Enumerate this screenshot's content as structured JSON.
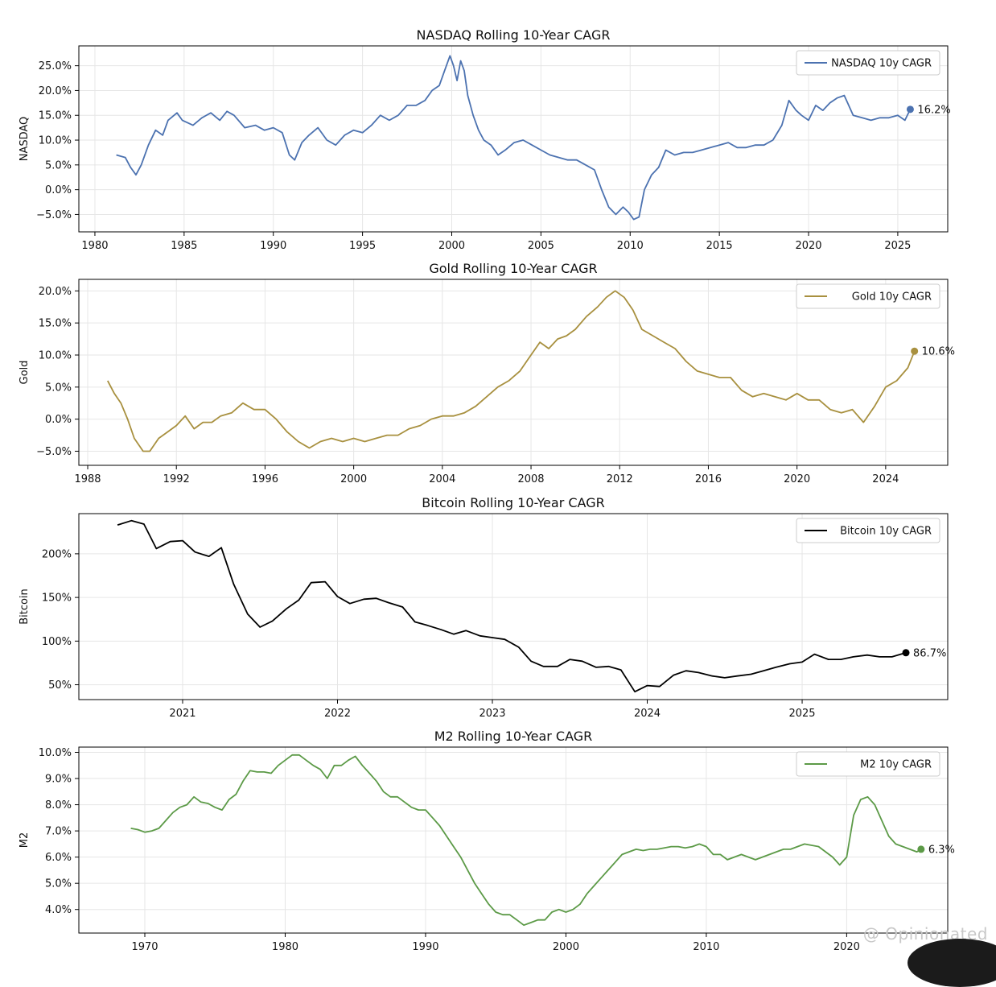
{
  "watermark": "@ Opinionated",
  "chart_data": [
    {
      "type": "line",
      "title": "NASDAQ Rolling 10-Year CAGR",
      "ylabel": "NASDAQ",
      "xlabel": "",
      "legend": "NASDAQ 10y CAGR",
      "legend_position": "top-right",
      "color": "#4c72b0",
      "grid": true,
      "xlim": [
        1979.1,
        2027.8
      ],
      "ylim": [
        -8.5,
        29.0
      ],
      "x_ticks": [
        1980,
        1985,
        1990,
        1995,
        2000,
        2005,
        2010,
        2015,
        2020,
        2025
      ],
      "x_tick_labels": [
        "1980",
        "1985",
        "1990",
        "1995",
        "2000",
        "2005",
        "2010",
        "2015",
        "2020",
        "2025"
      ],
      "y_ticks": [
        -5,
        0,
        5,
        10,
        15,
        20,
        25
      ],
      "y_tick_labels": [
        "−5.0%",
        "0.0%",
        "5.0%",
        "10.0%",
        "15.0%",
        "20.0%",
        "25.0%"
      ],
      "last_label": "16.2%",
      "x": [
        1981.2,
        1981.7,
        1982.0,
        1982.3,
        1982.6,
        1983.0,
        1983.4,
        1983.8,
        1984.1,
        1984.6,
        1984.9,
        1985.5,
        1986.0,
        1986.5,
        1987.0,
        1987.4,
        1987.8,
        1988.4,
        1989.0,
        1989.5,
        1990.0,
        1990.5,
        1990.9,
        1991.2,
        1991.6,
        1992.0,
        1992.5,
        1993.0,
        1993.5,
        1994.0,
        1994.5,
        1995.0,
        1995.5,
        1996.0,
        1996.5,
        1997.0,
        1997.5,
        1998.0,
        1998.5,
        1998.9,
        1999.3,
        1999.6,
        1999.9,
        2000.1,
        2000.3,
        2000.5,
        2000.7,
        2000.9,
        2001.2,
        2001.5,
        2001.8,
        2002.2,
        2002.6,
        2003.0,
        2003.5,
        2004.0,
        2004.5,
        2005.0,
        2005.5,
        2006.0,
        2006.5,
        2007.0,
        2007.5,
        2008.0,
        2008.4,
        2008.8,
        2009.2,
        2009.6,
        2009.9,
        2010.2,
        2010.5,
        2010.8,
        2011.2,
        2011.6,
        2012.0,
        2012.5,
        2013.0,
        2013.5,
        2014.0,
        2014.5,
        2015.0,
        2015.5,
        2016.0,
        2016.5,
        2017.0,
        2017.5,
        2018.0,
        2018.5,
        2018.9,
        2019.3,
        2019.6,
        2020.0,
        2020.4,
        2020.8,
        2021.2,
        2021.6,
        2022.0,
        2022.5,
        2023.0,
        2023.5,
        2024.0,
        2024.5,
        2025.0,
        2025.4,
        2025.7
      ],
      "y": [
        7.0,
        6.5,
        4.5,
        3.0,
        5.0,
        9.0,
        12.0,
        11.0,
        14.0,
        15.5,
        14.0,
        13.0,
        14.5,
        15.5,
        14.0,
        15.8,
        15.0,
        12.5,
        13.0,
        12.0,
        12.5,
        11.5,
        7.0,
        6.0,
        9.5,
        11.0,
        12.5,
        10.0,
        9.0,
        11.0,
        12.0,
        11.5,
        13.0,
        15.0,
        14.0,
        15.0,
        17.0,
        17.0,
        18.0,
        20.0,
        21.0,
        24.0,
        27.0,
        25.0,
        22.0,
        26.0,
        24.0,
        19.0,
        15.0,
        12.0,
        10.0,
        9.0,
        7.0,
        8.0,
        9.5,
        10.0,
        9.0,
        8.0,
        7.0,
        6.5,
        6.0,
        6.0,
        5.0,
        4.0,
        0.0,
        -3.5,
        -5.0,
        -3.5,
        -4.5,
        -6.0,
        -5.5,
        0.0,
        3.0,
        4.5,
        8.0,
        7.0,
        7.5,
        7.5,
        8.0,
        8.5,
        9.0,
        9.5,
        8.5,
        8.5,
        9.0,
        9.0,
        10.0,
        13.0,
        18.0,
        16.0,
        15.0,
        14.0,
        17.0,
        16.0,
        17.5,
        18.5,
        19.0,
        15.0,
        14.5,
        14.0,
        14.5,
        14.5,
        15.0,
        14.0,
        16.2
      ]
    },
    {
      "type": "line",
      "title": "Gold Rolling 10-Year CAGR",
      "ylabel": "Gold",
      "xlabel": "",
      "legend": "Gold 10y CAGR",
      "legend_position": "top-right",
      "color": "#a8903f",
      "grid": true,
      "xlim": [
        1987.6,
        2026.8
      ],
      "ylim": [
        -7.2,
        21.8
      ],
      "x_ticks": [
        1988,
        1992,
        1996,
        2000,
        2004,
        2008,
        2012,
        2016,
        2020,
        2024
      ],
      "x_tick_labels": [
        "1988",
        "1992",
        "1996",
        "2000",
        "2004",
        "2008",
        "2012",
        "2016",
        "2020",
        "2024"
      ],
      "y_ticks": [
        -5,
        0,
        5,
        10,
        15,
        20
      ],
      "y_tick_labels": [
        "−5.0%",
        "0.0%",
        "5.0%",
        "10.0%",
        "15.0%",
        "20.0%"
      ],
      "last_label": "10.6%",
      "x": [
        1988.9,
        1989.2,
        1989.5,
        1989.8,
        1990.1,
        1990.5,
        1990.8,
        1991.2,
        1991.6,
        1992.0,
        1992.4,
        1992.8,
        1993.2,
        1993.6,
        1994.0,
        1994.5,
        1995.0,
        1995.5,
        1996.0,
        1996.5,
        1997.0,
        1997.5,
        1998.0,
        1998.5,
        1999.0,
        1999.5,
        2000.0,
        2000.5,
        2001.0,
        2001.5,
        2002.0,
        2002.5,
        2003.0,
        2003.5,
        2004.0,
        2004.5,
        2005.0,
        2005.5,
        2006.0,
        2006.5,
        2007.0,
        2007.5,
        2008.0,
        2008.4,
        2008.8,
        2009.2,
        2009.6,
        2010.0,
        2010.5,
        2011.0,
        2011.4,
        2011.8,
        2012.2,
        2012.6,
        2013.0,
        2013.5,
        2014.0,
        2014.5,
        2015.0,
        2015.5,
        2016.0,
        2016.5,
        2017.0,
        2017.5,
        2018.0,
        2018.5,
        2019.0,
        2019.5,
        2020.0,
        2020.5,
        2021.0,
        2021.5,
        2022.0,
        2022.5,
        2023.0,
        2023.5,
        2024.0,
        2024.5,
        2025.0,
        2025.3
      ],
      "y": [
        6.0,
        4.0,
        2.5,
        0.0,
        -3.0,
        -5.0,
        -5.0,
        -3.0,
        -2.0,
        -1.0,
        0.5,
        -1.5,
        -0.5,
        -0.5,
        0.5,
        1.0,
        2.5,
        1.5,
        1.5,
        0.0,
        -2.0,
        -3.5,
        -4.5,
        -3.5,
        -3.0,
        -3.5,
        -3.0,
        -3.5,
        -3.0,
        -2.5,
        -2.5,
        -1.5,
        -1.0,
        0.0,
        0.5,
        0.5,
        1.0,
        2.0,
        3.5,
        5.0,
        6.0,
        7.5,
        10.0,
        12.0,
        11.0,
        12.5,
        13.0,
        14.0,
        16.0,
        17.5,
        19.0,
        20.0,
        19.0,
        17.0,
        14.0,
        13.0,
        12.0,
        11.0,
        9.0,
        7.5,
        7.0,
        6.5,
        6.5,
        4.5,
        3.5,
        4.0,
        3.5,
        3.0,
        4.0,
        3.0,
        3.0,
        1.5,
        1.0,
        1.5,
        -0.5,
        2.0,
        5.0,
        6.0,
        8.0,
        10.6
      ]
    },
    {
      "type": "line",
      "title": "Bitcoin Rolling 10-Year CAGR",
      "ylabel": "Bitcoin",
      "xlabel": "",
      "legend": "Bitcoin 10y CAGR",
      "legend_position": "top-right",
      "color": "#000000",
      "grid": true,
      "xlim": [
        2020.33,
        2025.94
      ],
      "ylim": [
        33,
        246
      ],
      "x_ticks": [
        2021,
        2022,
        2023,
        2024,
        2025
      ],
      "x_tick_labels": [
        "2021",
        "2022",
        "2023",
        "2024",
        "2025"
      ],
      "y_ticks": [
        50,
        100,
        150,
        200
      ],
      "y_tick_labels": [
        "50%",
        "100%",
        "150%",
        "200%"
      ],
      "last_label": "86.7%",
      "x": [
        2020.58,
        2020.67,
        2020.75,
        2020.83,
        2020.92,
        2021.0,
        2021.08,
        2021.17,
        2021.25,
        2021.33,
        2021.42,
        2021.5,
        2021.58,
        2021.67,
        2021.75,
        2021.83,
        2021.92,
        2022.0,
        2022.08,
        2022.17,
        2022.25,
        2022.33,
        2022.42,
        2022.5,
        2022.58,
        2022.67,
        2022.75,
        2022.83,
        2022.92,
        2023.0,
        2023.08,
        2023.17,
        2023.25,
        2023.33,
        2023.42,
        2023.5,
        2023.58,
        2023.67,
        2023.75,
        2023.83,
        2023.92,
        2024.0,
        2024.08,
        2024.17,
        2024.25,
        2024.33,
        2024.42,
        2024.5,
        2024.58,
        2024.67,
        2024.75,
        2024.83,
        2024.92,
        2025.0,
        2025.08,
        2025.17,
        2025.25,
        2025.33,
        2025.42,
        2025.5,
        2025.58,
        2025.67
      ],
      "y": [
        233,
        238,
        234,
        206,
        214,
        215,
        202,
        197,
        207,
        165,
        131,
        116,
        123,
        137,
        147,
        167,
        168,
        151,
        143,
        148,
        149,
        144,
        139,
        122,
        118,
        113,
        108,
        112,
        106,
        104,
        102,
        93,
        77,
        71,
        71,
        79,
        77,
        70,
        71,
        67,
        42,
        49,
        48,
        61,
        66,
        64,
        60,
        58,
        60,
        62,
        66,
        70,
        74,
        76,
        85,
        79,
        79,
        82,
        84,
        82,
        82,
        86.7
      ]
    },
    {
      "type": "line",
      "title": "M2 Rolling 10-Year CAGR",
      "ylabel": "M2",
      "xlabel": "",
      "legend": "M2 10y CAGR",
      "legend_position": "top-right",
      "color": "#5c9a47",
      "grid": true,
      "xlim": [
        1965.3,
        2027.2
      ],
      "ylim": [
        3.1,
        10.2
      ],
      "x_ticks": [
        1970,
        1980,
        1990,
        2000,
        2010,
        2020
      ],
      "x_tick_labels": [
        "1970",
        "1980",
        "1990",
        "2000",
        "2010",
        "2020"
      ],
      "y_ticks": [
        4,
        5,
        6,
        7,
        8,
        9,
        10
      ],
      "y_tick_labels": [
        "4.0%",
        "5.0%",
        "6.0%",
        "7.0%",
        "8.0%",
        "9.0%",
        "10.0%"
      ],
      "last_label": "6.3%",
      "x": [
        1969.0,
        1969.5,
        1970.0,
        1970.5,
        1971.0,
        1971.5,
        1972.0,
        1972.5,
        1973.0,
        1973.5,
        1974.0,
        1974.5,
        1975.0,
        1975.5,
        1976.0,
        1976.5,
        1977.0,
        1977.5,
        1978.0,
        1978.5,
        1979.0,
        1979.5,
        1980.0,
        1980.5,
        1981.0,
        1981.5,
        1982.0,
        1982.5,
        1983.0,
        1983.5,
        1984.0,
        1984.5,
        1985.0,
        1985.5,
        1986.0,
        1986.5,
        1987.0,
        1987.5,
        1988.0,
        1988.5,
        1989.0,
        1989.5,
        1990.0,
        1990.5,
        1991.0,
        1991.5,
        1992.0,
        1992.5,
        1993.0,
        1993.5,
        1994.0,
        1994.5,
        1995.0,
        1995.5,
        1996.0,
        1996.5,
        1997.0,
        1997.5,
        1998.0,
        1998.5,
        1999.0,
        1999.5,
        2000.0,
        2000.5,
        2001.0,
        2001.5,
        2002.0,
        2002.5,
        2003.0,
        2003.5,
        2004.0,
        2004.5,
        2005.0,
        2005.5,
        2006.0,
        2006.5,
        2007.0,
        2007.5,
        2008.0,
        2008.5,
        2009.0,
        2009.5,
        2010.0,
        2010.5,
        2011.0,
        2011.5,
        2012.0,
        2012.5,
        2013.0,
        2013.5,
        2014.0,
        2014.5,
        2015.0,
        2015.5,
        2016.0,
        2016.5,
        2017.0,
        2017.5,
        2018.0,
        2018.5,
        2019.0,
        2019.5,
        2020.0,
        2020.5,
        2021.0,
        2021.5,
        2022.0,
        2022.5,
        2023.0,
        2023.5,
        2024.0,
        2024.5,
        2025.0,
        2025.3
      ],
      "y": [
        7.1,
        7.05,
        6.95,
        7.0,
        7.1,
        7.4,
        7.7,
        7.9,
        8.0,
        8.3,
        8.1,
        8.05,
        7.9,
        7.8,
        8.2,
        8.4,
        8.9,
        9.3,
        9.25,
        9.25,
        9.2,
        9.5,
        9.7,
        9.9,
        9.9,
        9.7,
        9.5,
        9.35,
        9.0,
        9.5,
        9.5,
        9.7,
        9.85,
        9.5,
        9.2,
        8.9,
        8.5,
        8.3,
        8.3,
        8.1,
        7.9,
        7.8,
        7.8,
        7.5,
        7.2,
        6.8,
        6.4,
        6.0,
        5.5,
        5.0,
        4.6,
        4.2,
        3.9,
        3.8,
        3.8,
        3.6,
        3.4,
        3.5,
        3.6,
        3.6,
        3.9,
        4.0,
        3.9,
        4.0,
        4.2,
        4.6,
        4.9,
        5.2,
        5.5,
        5.8,
        6.1,
        6.2,
        6.3,
        6.25,
        6.3,
        6.3,
        6.35,
        6.4,
        6.4,
        6.35,
        6.4,
        6.5,
        6.4,
        6.1,
        6.1,
        5.9,
        6.0,
        6.1,
        6.0,
        5.9,
        6.0,
        6.1,
        6.2,
        6.3,
        6.3,
        6.4,
        6.5,
        6.45,
        6.4,
        6.2,
        6.0,
        5.7,
        6.0,
        7.6,
        8.2,
        8.3,
        8.0,
        7.4,
        6.8,
        6.5,
        6.4,
        6.3,
        6.2,
        6.3
      ]
    }
  ]
}
